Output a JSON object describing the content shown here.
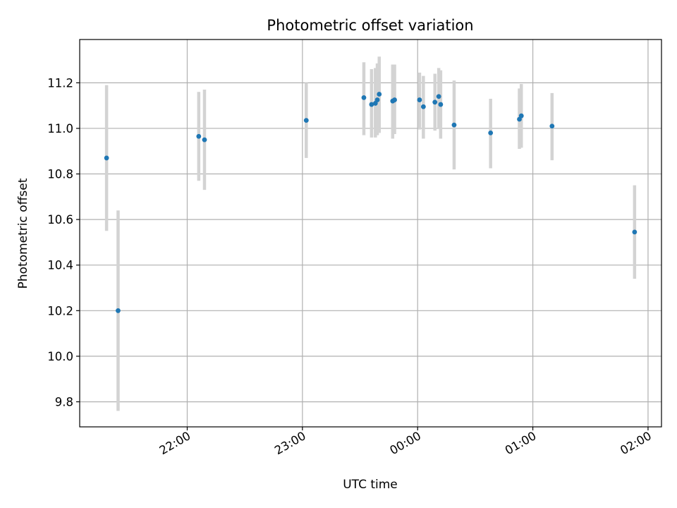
{
  "chart_data": {
    "type": "scatter",
    "title": "Photometric offset variation",
    "xlabel": "UTC time",
    "ylabel": "Photometric offset",
    "x_ticks": [
      "22:00",
      "23:00",
      "00:00",
      "01:00",
      "02:00"
    ],
    "y_ticks": [
      9.8,
      10.0,
      10.2,
      10.4,
      10.6,
      10.8,
      11.0,
      11.2
    ],
    "xlim": [
      "21:04",
      "02:07"
    ],
    "ylim": [
      9.69,
      11.39
    ],
    "grid": true,
    "colors": {
      "points": "#1f77b4",
      "errorbars": "#d3d3d3",
      "grid": "#b0b0b0"
    },
    "series": [
      {
        "points": [
          {
            "x": "21:18",
            "y": 10.87,
            "lo": 10.55,
            "hi": 11.19
          },
          {
            "x": "21:24",
            "y": 10.2,
            "lo": 9.76,
            "hi": 10.64
          },
          {
            "x": "22:06",
            "y": 10.965,
            "lo": 10.77,
            "hi": 11.16
          },
          {
            "x": "22:09",
            "y": 10.95,
            "lo": 10.73,
            "hi": 11.17
          },
          {
            "x": "23:02",
            "y": 11.035,
            "lo": 10.87,
            "hi": 11.2
          },
          {
            "x": "23:32",
            "y": 11.135,
            "lo": 10.97,
            "hi": 11.29
          },
          {
            "x": "23:36",
            "y": 11.105,
            "lo": 10.96,
            "hi": 11.26
          },
          {
            "x": "23:38",
            "y": 11.11,
            "lo": 10.96,
            "hi": 11.265
          },
          {
            "x": "23:39",
            "y": 11.125,
            "lo": 10.97,
            "hi": 11.285
          },
          {
            "x": "23:40",
            "y": 11.15,
            "lo": 10.98,
            "hi": 11.315
          },
          {
            "x": "23:47",
            "y": 11.12,
            "lo": 10.955,
            "hi": 11.28
          },
          {
            "x": "23:48",
            "y": 11.125,
            "lo": 10.975,
            "hi": 11.28
          },
          {
            "x": "00:01",
            "y": 11.125,
            "lo": 10.995,
            "hi": 11.245
          },
          {
            "x": "00:03",
            "y": 11.095,
            "lo": 10.955,
            "hi": 11.23
          },
          {
            "x": "00:09",
            "y": 11.115,
            "lo": 10.99,
            "hi": 11.24
          },
          {
            "x": "00:11",
            "y": 11.14,
            "lo": 11.0,
            "hi": 11.265
          },
          {
            "x": "00:12",
            "y": 11.105,
            "lo": 10.955,
            "hi": 11.255
          },
          {
            "x": "00:19",
            "y": 11.015,
            "lo": 10.82,
            "hi": 11.21
          },
          {
            "x": "00:38",
            "y": 10.98,
            "lo": 10.825,
            "hi": 11.13
          },
          {
            "x": "00:53",
            "y": 11.04,
            "lo": 10.91,
            "hi": 11.175
          },
          {
            "x": "00:54",
            "y": 11.055,
            "lo": 10.915,
            "hi": 11.195
          },
          {
            "x": "01:10",
            "y": 11.01,
            "lo": 10.86,
            "hi": 11.155
          },
          {
            "x": "01:53",
            "y": 10.545,
            "lo": 10.34,
            "hi": 10.75
          }
        ]
      }
    ]
  }
}
